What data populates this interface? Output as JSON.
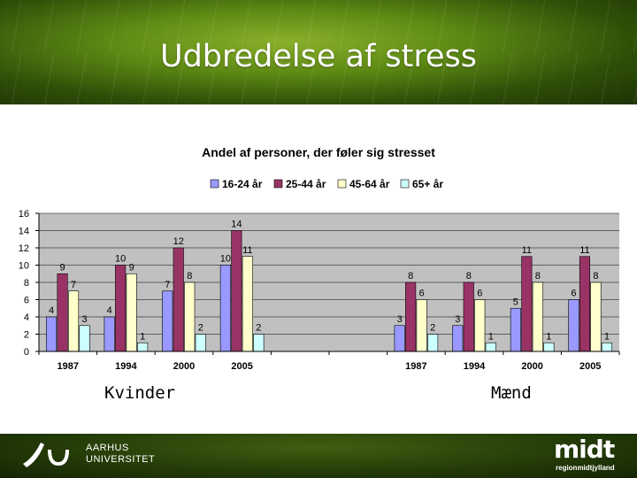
{
  "slide": {
    "title": "Udbredelse af stress",
    "group_labels": [
      "Kvinder",
      "Mænd"
    ],
    "footer_left": [
      "AARHUS",
      "UNIVERSITET"
    ],
    "footer_right_logo": "midt",
    "footer_right_sub": "regionmidtjylland"
  },
  "colors": {
    "series": [
      "#9999ff",
      "#993366",
      "#ffffcc",
      "#ccffff"
    ],
    "plot_bg": "#c0c0c0"
  },
  "chart_data": {
    "type": "bar",
    "title": "Andel af personer, der føler sig stresset",
    "xlabel": "",
    "ylabel": "",
    "ylim": [
      0,
      16
    ],
    "yticks": [
      0,
      2,
      4,
      6,
      8,
      10,
      12,
      14,
      16
    ],
    "legend_position": "top",
    "categories": [
      "1987",
      "1994",
      "2000",
      "2005",
      "",
      "",
      "1987",
      "1994",
      "2000",
      "2005"
    ],
    "series": [
      {
        "name": "16-24 år",
        "values": [
          4,
          4,
          7,
          10,
          null,
          null,
          3,
          3,
          5,
          6
        ]
      },
      {
        "name": "25-44 år",
        "values": [
          9,
          10,
          12,
          14,
          null,
          null,
          8,
          8,
          11,
          11
        ]
      },
      {
        "name": "45-64 år",
        "values": [
          7,
          9,
          8,
          11,
          null,
          null,
          6,
          6,
          8,
          8
        ]
      },
      {
        "name": "65+ år",
        "values": [
          3,
          1,
          2,
          2,
          null,
          null,
          2,
          1,
          1,
          1
        ]
      }
    ]
  }
}
